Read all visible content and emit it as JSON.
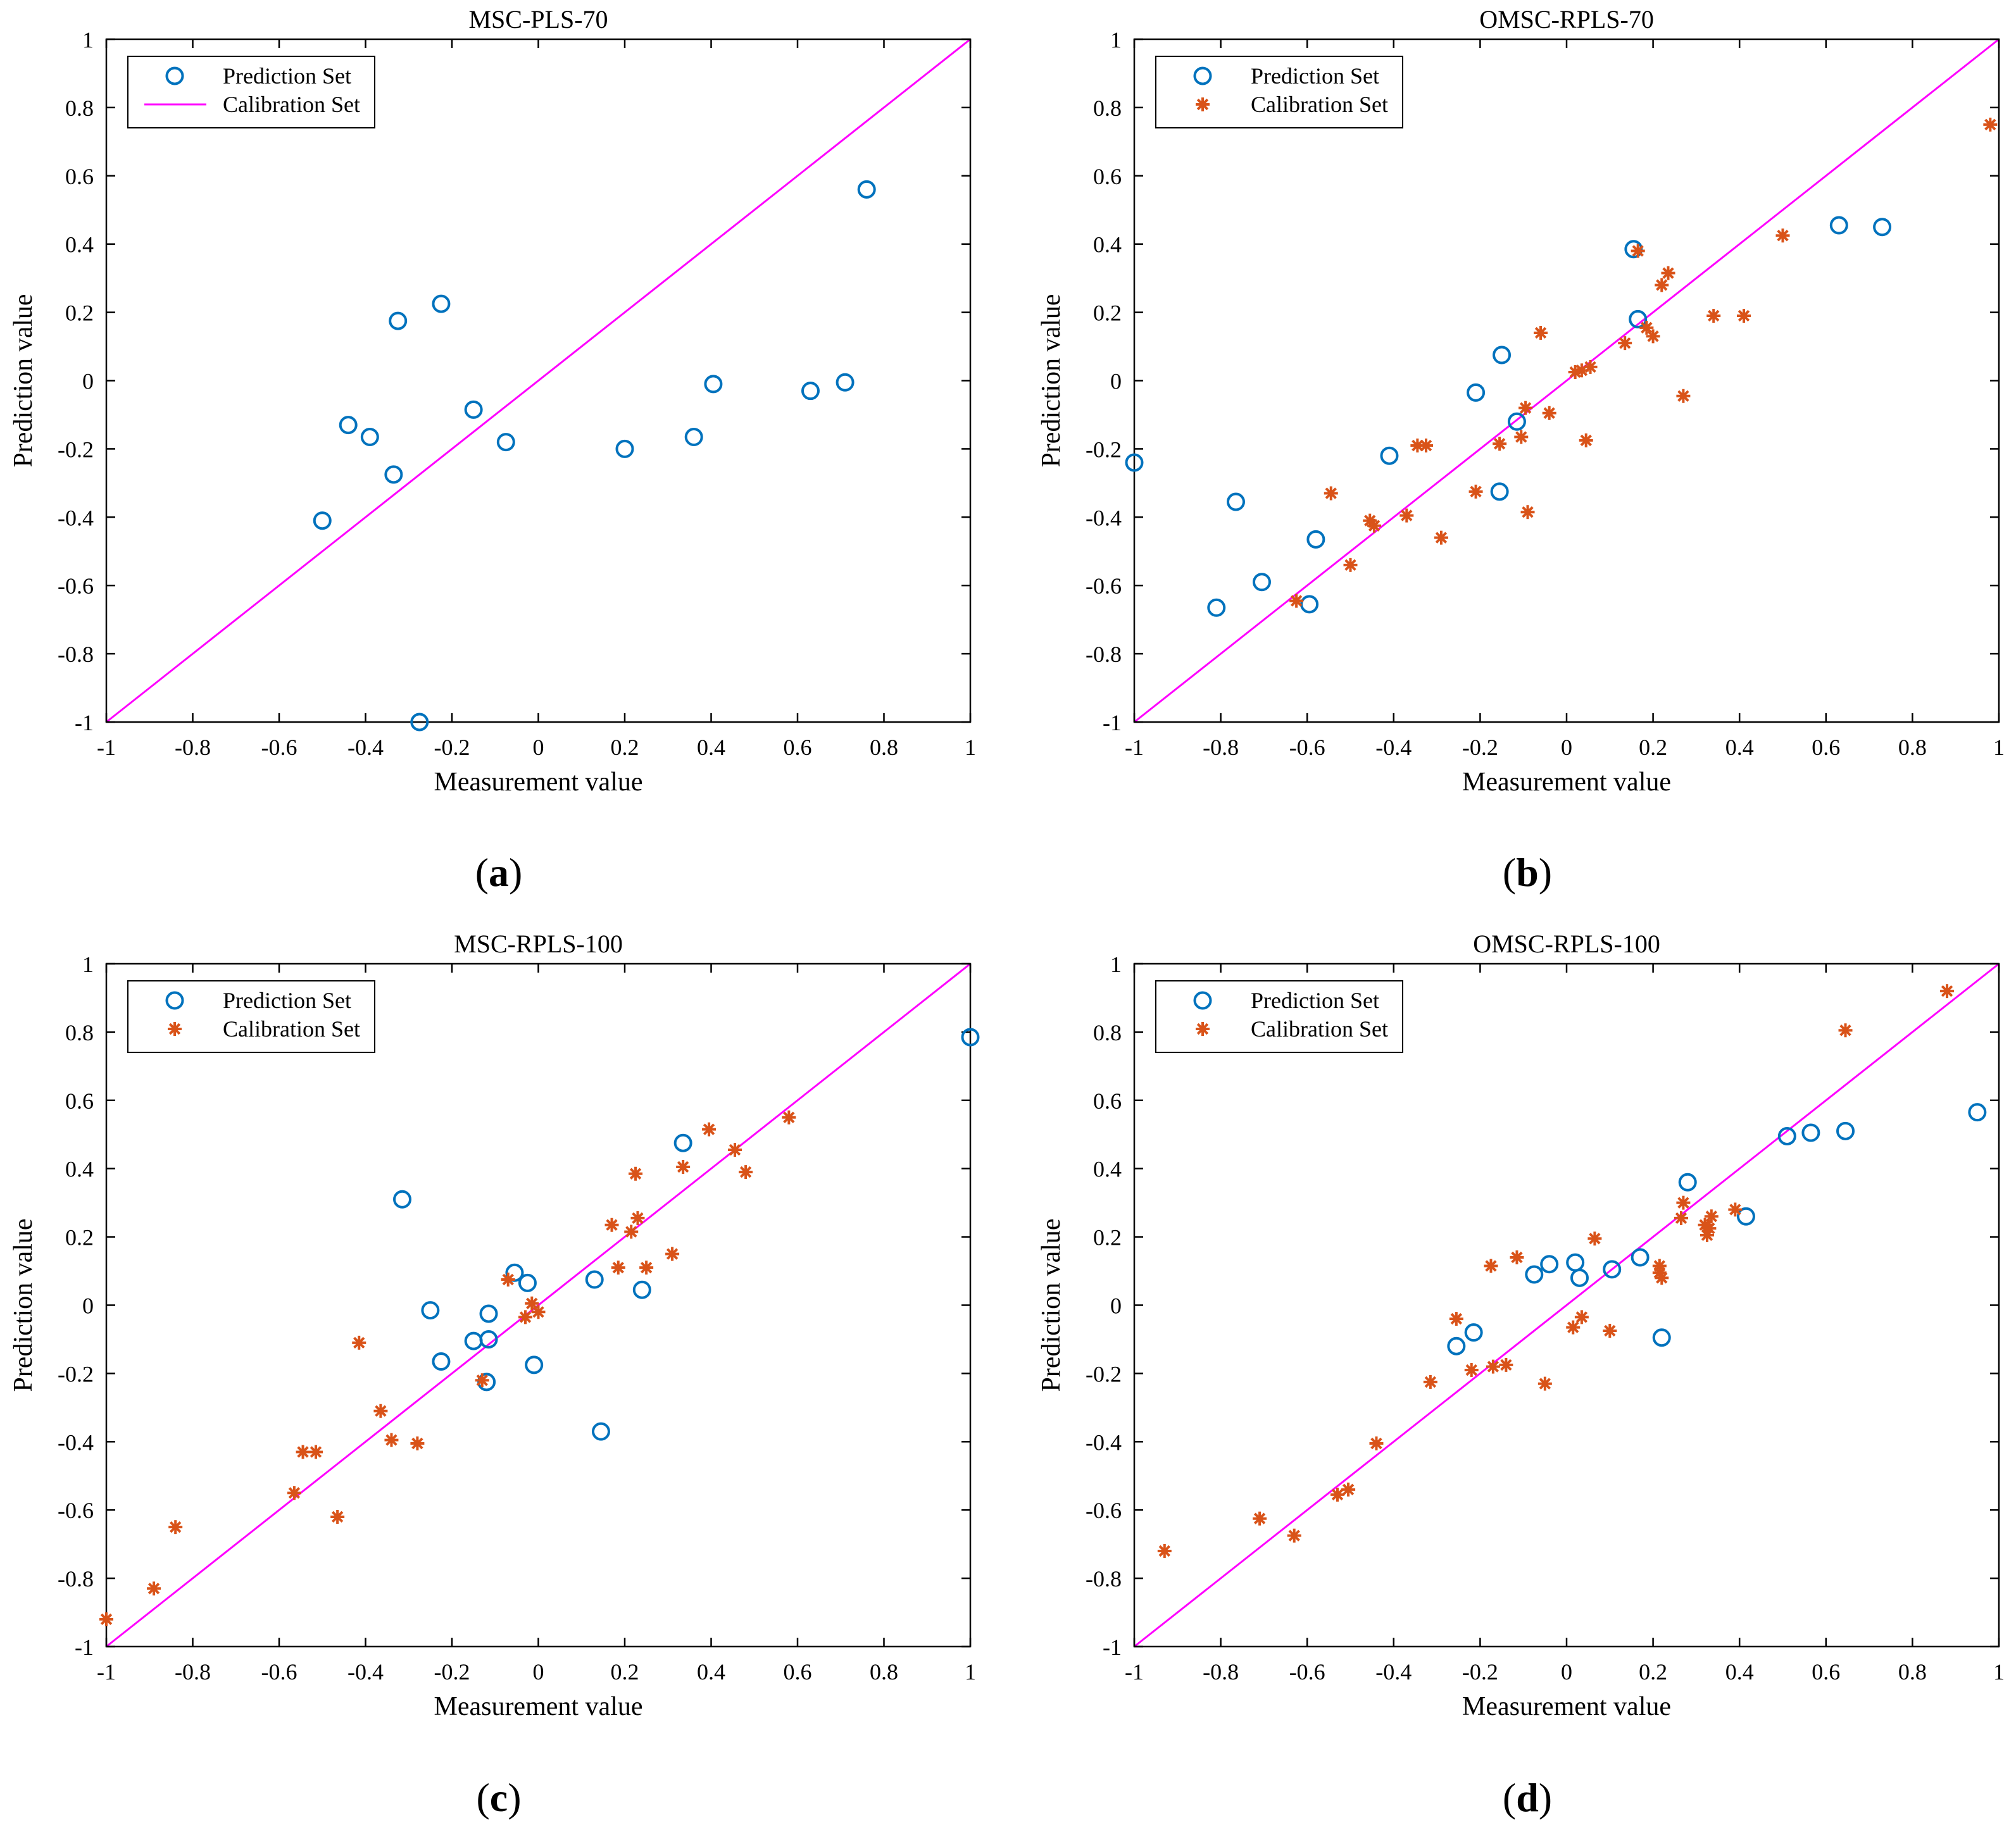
{
  "figure_captions": [
    "(a)",
    "(b)",
    "(c)",
    "(d)"
  ],
  "caption_letters": [
    "a",
    "b",
    "c",
    "d"
  ],
  "colors": {
    "prediction": "#0072BD",
    "calibration": "#D95319",
    "reference_line": "#FF00FF",
    "axes": "#000000"
  },
  "chart_data": [
    {
      "type": "scatter",
      "title": "MSC-PLS-70",
      "xlabel": "Measurement value",
      "ylabel": "Prediction value",
      "xlim": [
        -1,
        1
      ],
      "ylim": [
        -1,
        1
      ],
      "xticks": [
        "-1",
        "-0.8",
        "-0.6",
        "-0.4",
        "-0.2",
        "0",
        "0.2",
        "0.4",
        "0.6",
        "0.8",
        "1"
      ],
      "yticks": [
        "-1",
        "-0.8",
        "-0.6",
        "-0.4",
        "-0.2",
        "0",
        "0.2",
        "0.4",
        "0.6",
        "0.8",
        "1"
      ],
      "legend": [
        "Prediction Set",
        "Calibration Set"
      ],
      "legend_markers": [
        "circle",
        "line"
      ],
      "legend_position": "top-left",
      "reference_line": "y = x",
      "series": [
        {
          "name": "Prediction Set",
          "marker": "circle",
          "x": [
            -0.5,
            -0.44,
            -0.39,
            -0.335,
            -0.325,
            -0.225,
            -0.15,
            -0.075,
            0.2,
            0.36,
            0.405,
            0.63,
            0.71,
            0.76,
            -0.275
          ],
          "y": [
            -0.41,
            -0.13,
            -0.165,
            -0.275,
            0.175,
            0.225,
            -0.085,
            -0.18,
            -0.2,
            -0.165,
            -0.01,
            -0.03,
            -0.005,
            0.56,
            -1.0
          ]
        }
      ]
    },
    {
      "type": "scatter",
      "title": "OMSC-RPLS-70",
      "xlabel": "Measurement value",
      "ylabel": "Prediction value",
      "xlim": [
        -1,
        1
      ],
      "ylim": [
        -1,
        1
      ],
      "xticks": [
        "-1",
        "-0.8",
        "-0.6",
        "-0.4",
        "-0.2",
        "0",
        "0.2",
        "0.4",
        "0.6",
        "0.8",
        "1"
      ],
      "yticks": [
        "-1",
        "-0.8",
        "-0.6",
        "-0.4",
        "-0.2",
        "0",
        "0.2",
        "0.4",
        "0.6",
        "0.8",
        "1"
      ],
      "legend": [
        "Prediction Set",
        "Calibration Set"
      ],
      "legend_markers": [
        "circle",
        "asterisk"
      ],
      "legend_position": "top-left",
      "reference_line": "y = x",
      "series": [
        {
          "name": "Prediction Set",
          "marker": "circle",
          "x": [
            -1.0,
            -0.81,
            -0.765,
            -0.705,
            -0.595,
            -0.58,
            -0.41,
            -0.21,
            -0.15,
            -0.155,
            -0.115,
            0.155,
            0.165,
            0.63,
            0.73
          ],
          "y": [
            -0.24,
            -0.665,
            -0.355,
            -0.59,
            -0.655,
            -0.465,
            -0.22,
            -0.035,
            0.075,
            -0.325,
            -0.12,
            0.385,
            0.18,
            0.455,
            0.45
          ]
        },
        {
          "name": "Calibration Set",
          "marker": "asterisk",
          "x": [
            -0.625,
            -0.545,
            -0.5,
            -0.455,
            -0.445,
            -0.37,
            -0.345,
            -0.325,
            -0.29,
            -0.21,
            -0.155,
            -0.105,
            -0.095,
            -0.09,
            -0.06,
            -0.04,
            0.02,
            0.035,
            0.045,
            0.055,
            0.135,
            0.165,
            0.185,
            0.2,
            0.22,
            0.235,
            0.27,
            0.34,
            0.5,
            0.41,
            0.98
          ],
          "y": [
            -0.645,
            -0.33,
            -0.54,
            -0.41,
            -0.425,
            -0.395,
            -0.19,
            -0.19,
            -0.46,
            -0.325,
            -0.185,
            -0.165,
            -0.08,
            -0.385,
            0.14,
            -0.095,
            0.025,
            0.03,
            -0.175,
            0.04,
            0.11,
            0.38,
            0.155,
            0.13,
            0.28,
            0.315,
            -0.045,
            0.19,
            0.425,
            0.19,
            0.75
          ]
        }
      ]
    },
    {
      "type": "scatter",
      "title": "MSC-RPLS-100",
      "xlabel": "Measurement value",
      "ylabel": "Prediction value",
      "xlim": [
        -1,
        1
      ],
      "ylim": [
        -1,
        1
      ],
      "xticks": [
        "-1",
        "-0.8",
        "-0.6",
        "-0.4",
        "-0.2",
        "0",
        "0.2",
        "0.4",
        "0.6",
        "0.8",
        "1"
      ],
      "yticks": [
        "-1",
        "-0.8",
        "-0.6",
        "-0.4",
        "-0.2",
        "0",
        "0.2",
        "0.4",
        "0.6",
        "0.8",
        "1"
      ],
      "legend": [
        "Prediction Set",
        "Calibration Set"
      ],
      "legend_markers": [
        "circle",
        "asterisk"
      ],
      "legend_position": "top-left",
      "reference_line": "y = x",
      "series": [
        {
          "name": "Prediction Set",
          "marker": "circle",
          "x": [
            -0.315,
            -0.25,
            -0.225,
            -0.15,
            -0.115,
            -0.115,
            -0.12,
            -0.055,
            -0.025,
            -0.01,
            0.13,
            0.145,
            0.24,
            0.335,
            1.0
          ],
          "y": [
            0.31,
            -0.015,
            -0.165,
            -0.105,
            -0.025,
            -0.1,
            -0.225,
            0.095,
            0.065,
            -0.175,
            0.075,
            -0.37,
            0.045,
            0.475,
            0.785
          ]
        },
        {
          "name": "Calibration Set",
          "marker": "asterisk",
          "x": [
            -1.0,
            -0.89,
            -0.84,
            -0.565,
            -0.545,
            -0.515,
            -0.465,
            -0.415,
            -0.365,
            -0.34,
            -0.28,
            -0.13,
            -0.07,
            -0.03,
            -0.015,
            0.0,
            0.17,
            0.185,
            0.215,
            0.225,
            0.23,
            0.25,
            0.31,
            0.335,
            0.395,
            0.455,
            0.48,
            0.58
          ],
          "y": [
            -0.92,
            -0.83,
            -0.65,
            -0.55,
            -0.43,
            -0.43,
            -0.62,
            -0.11,
            -0.31,
            -0.395,
            -0.405,
            -0.22,
            0.075,
            -0.035,
            0.005,
            -0.02,
            0.235,
            0.11,
            0.215,
            0.385,
            0.255,
            0.11,
            0.15,
            0.405,
            0.515,
            0.455,
            0.39,
            0.55
          ]
        }
      ]
    },
    {
      "type": "scatter",
      "title": "OMSC-RPLS-100",
      "xlabel": "Measurement value",
      "ylabel": "Prediction value",
      "xlim": [
        -1,
        1
      ],
      "ylim": [
        -1,
        1
      ],
      "xticks": [
        "-1",
        "-0.8",
        "-0.6",
        "-0.4",
        "-0.2",
        "0",
        "0.2",
        "0.4",
        "0.6",
        "0.8",
        "1"
      ],
      "yticks": [
        "-1",
        "-0.8",
        "-0.6",
        "-0.4",
        "-0.2",
        "0",
        "0.2",
        "0.4",
        "0.6",
        "0.8",
        "1"
      ],
      "legend": [
        "Prediction Set",
        "Calibration Set"
      ],
      "legend_markers": [
        "circle",
        "asterisk"
      ],
      "legend_position": "top-left",
      "reference_line": "y = x",
      "series": [
        {
          "name": "Prediction Set",
          "marker": "circle",
          "x": [
            -0.255,
            -0.215,
            -0.075,
            -0.04,
            0.02,
            0.03,
            0.105,
            0.17,
            0.22,
            0.28,
            0.415,
            0.51,
            0.565,
            0.645,
            0.95
          ],
          "y": [
            -0.12,
            -0.08,
            0.09,
            0.12,
            0.125,
            0.08,
            0.105,
            0.14,
            -0.095,
            0.36,
            0.26,
            0.495,
            0.505,
            0.51,
            0.565
          ]
        },
        {
          "name": "Calibration Set",
          "marker": "asterisk",
          "x": [
            -0.93,
            -0.71,
            -0.63,
            -0.53,
            -0.505,
            -0.44,
            -0.315,
            -0.255,
            -0.22,
            -0.175,
            -0.17,
            -0.14,
            -0.115,
            -0.05,
            0.015,
            0.035,
            0.065,
            0.1,
            0.215,
            0.22,
            0.215,
            0.265,
            0.27,
            0.32,
            0.325,
            0.33,
            0.335,
            0.39,
            0.645,
            0.88
          ],
          "y": [
            -0.72,
            -0.625,
            -0.675,
            -0.555,
            -0.54,
            -0.405,
            -0.225,
            -0.04,
            -0.19,
            0.115,
            -0.18,
            -0.175,
            0.14,
            -0.23,
            -0.065,
            -0.035,
            0.195,
            -0.075,
            0.095,
            0.08,
            0.115,
            0.255,
            0.3,
            0.235,
            0.205,
            0.225,
            0.26,
            0.28,
            0.805,
            0.92
          ]
        }
      ]
    }
  ]
}
